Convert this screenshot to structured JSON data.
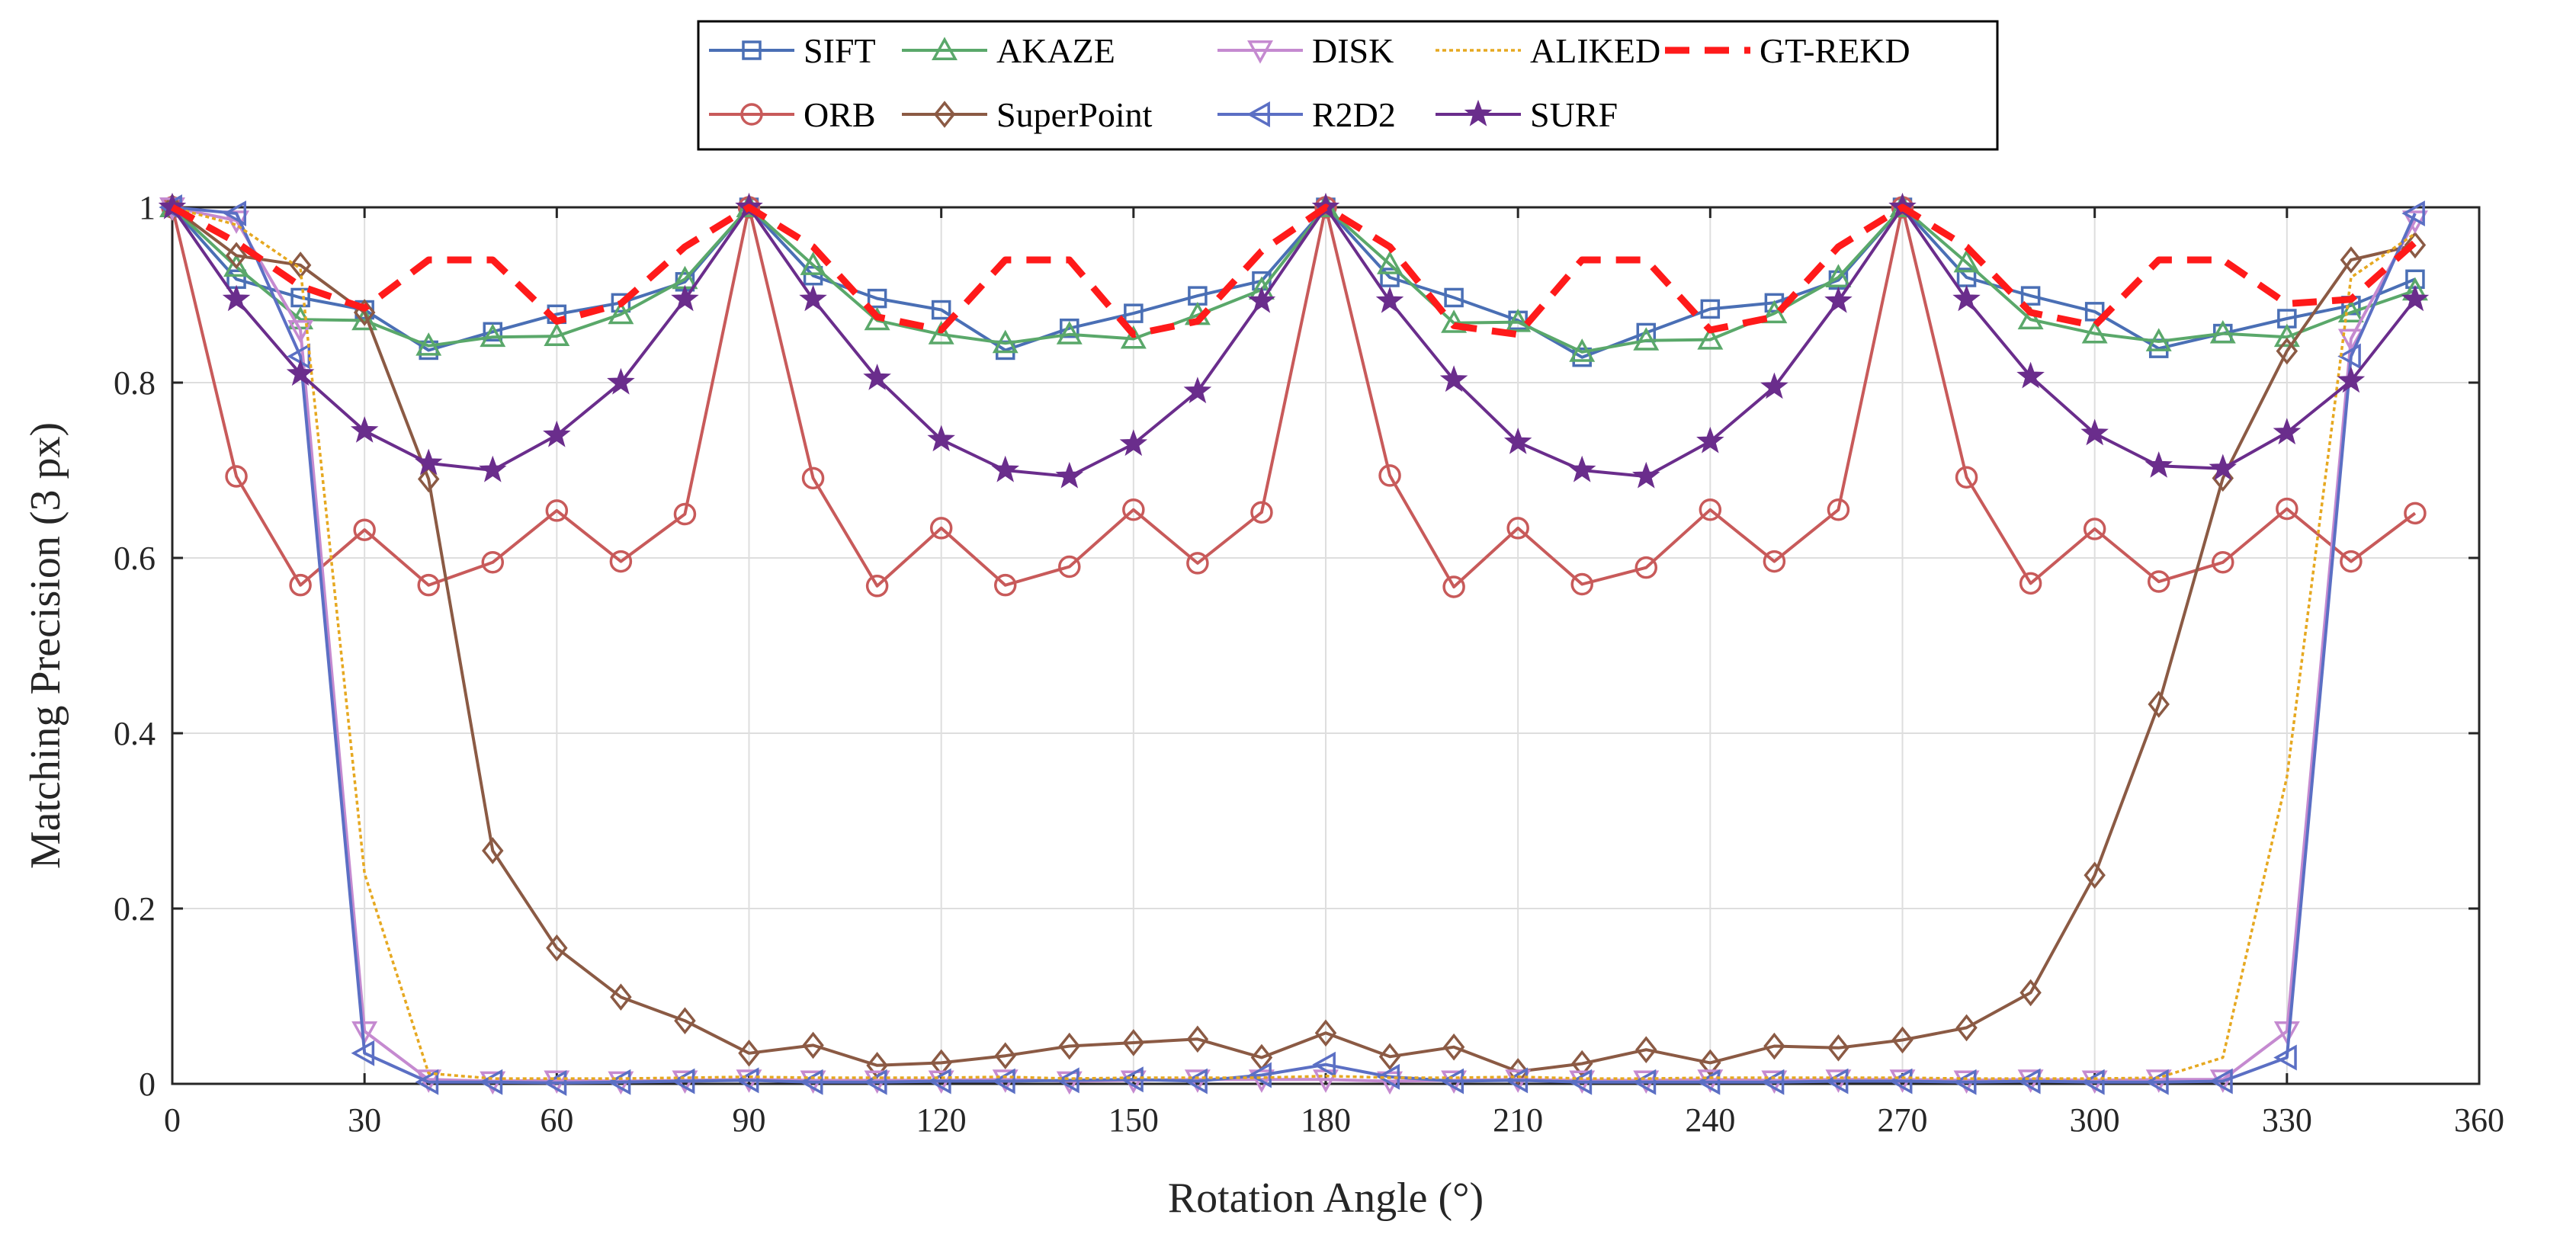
{
  "chart_data": {
    "type": "line",
    "xlabel": "Rotation Angle (°)",
    "ylabel": "Matching Precision (3 px)",
    "xlim": [
      0,
      360
    ],
    "ylim": [
      0,
      1
    ],
    "xticks": [
      0,
      30,
      60,
      90,
      120,
      150,
      180,
      210,
      240,
      270,
      300,
      330,
      360
    ],
    "yticks": [
      0,
      0.2,
      0.4,
      0.6,
      0.8,
      1
    ],
    "ytick_labels": [
      "0",
      "0.2",
      "0.4",
      "0.6",
      "0.8",
      "1"
    ],
    "grid": true,
    "legend_position": "top-center",
    "x": [
      0,
      10,
      20,
      30,
      40,
      50,
      60,
      70,
      80,
      90,
      100,
      110,
      120,
      130,
      140,
      150,
      160,
      170,
      180,
      190,
      200,
      210,
      220,
      230,
      240,
      250,
      260,
      270,
      280,
      290,
      300,
      310,
      320,
      330,
      340,
      350
    ],
    "series": [
      {
        "name": "SIFT",
        "color": "#4a6fb5",
        "marker": "square",
        "line": "solid",
        "values": [
          1.0,
          0.918,
          0.897,
          0.883,
          0.837,
          0.858,
          0.878,
          0.891,
          0.915,
          1.0,
          0.922,
          0.896,
          0.883,
          0.837,
          0.862,
          0.879,
          0.899,
          0.916,
          1.0,
          0.92,
          0.897,
          0.871,
          0.829,
          0.857,
          0.884,
          0.891,
          0.917,
          1.0,
          0.92,
          0.899,
          0.881,
          0.839,
          0.856,
          0.873,
          0.888,
          0.918
        ]
      },
      {
        "name": "ORB",
        "color": "#c85a5a",
        "marker": "circle",
        "line": "solid",
        "values": [
          1.0,
          0.693,
          0.569,
          0.632,
          0.569,
          0.595,
          0.654,
          0.596,
          0.65,
          1.0,
          0.691,
          0.568,
          0.634,
          0.569,
          0.59,
          0.655,
          0.594,
          0.652,
          1.0,
          0.694,
          0.567,
          0.634,
          0.57,
          0.589,
          0.655,
          0.596,
          0.655,
          1.0,
          0.692,
          0.571,
          0.633,
          0.573,
          0.595,
          0.656,
          0.596,
          0.651
        ]
      },
      {
        "name": "AKAZE",
        "color": "#5aa86a",
        "marker": "triangle-up",
        "line": "solid",
        "values": [
          1.0,
          0.932,
          0.872,
          0.871,
          0.842,
          0.852,
          0.853,
          0.878,
          0.918,
          1.0,
          0.934,
          0.871,
          0.855,
          0.845,
          0.855,
          0.85,
          0.877,
          0.906,
          1.0,
          0.935,
          0.868,
          0.869,
          0.835,
          0.848,
          0.849,
          0.879,
          0.92,
          1.0,
          0.937,
          0.872,
          0.856,
          0.847,
          0.856,
          0.852,
          0.88,
          0.905
        ]
      },
      {
        "name": "SuperPoint",
        "color": "#8b5a44",
        "marker": "diamond",
        "line": "solid",
        "values": [
          1.0,
          0.945,
          0.934,
          0.88,
          0.69,
          0.266,
          0.155,
          0.099,
          0.072,
          0.035,
          0.044,
          0.021,
          0.024,
          0.032,
          0.043,
          0.047,
          0.051,
          0.03,
          0.058,
          0.031,
          0.042,
          0.014,
          0.023,
          0.039,
          0.024,
          0.043,
          0.041,
          0.05,
          0.064,
          0.104,
          0.238,
          0.433,
          0.691,
          0.836,
          0.94,
          0.957
        ]
      },
      {
        "name": "DISK",
        "color": "#c58ad0",
        "marker": "triangle-down",
        "line": "solid",
        "values": [
          1.0,
          0.985,
          0.86,
          0.06,
          0.005,
          0.003,
          0.004,
          0.003,
          0.004,
          0.005,
          0.004,
          0.004,
          0.004,
          0.005,
          0.003,
          0.004,
          0.005,
          0.005,
          0.005,
          0.003,
          0.004,
          0.005,
          0.004,
          0.004,
          0.005,
          0.004,
          0.005,
          0.005,
          0.004,
          0.005,
          0.004,
          0.005,
          0.005,
          0.06,
          0.85,
          0.985
        ]
      },
      {
        "name": "R2D2",
        "color": "#5b6fc4",
        "marker": "triangle-left",
        "line": "solid",
        "values": [
          1.0,
          0.993,
          0.83,
          0.035,
          0.002,
          0.002,
          0.001,
          0.002,
          0.003,
          0.004,
          0.002,
          0.002,
          0.003,
          0.003,
          0.004,
          0.005,
          0.003,
          0.01,
          0.022,
          0.008,
          0.003,
          0.004,
          0.002,
          0.002,
          0.002,
          0.002,
          0.003,
          0.003,
          0.002,
          0.003,
          0.002,
          0.002,
          0.003,
          0.03,
          0.83,
          0.993
        ]
      },
      {
        "name": "ALIKED",
        "color": "#e6a820",
        "marker": "none",
        "line": "dotted",
        "values": [
          1.0,
          0.98,
          0.93,
          0.24,
          0.012,
          0.006,
          0.006,
          0.006,
          0.007,
          0.008,
          0.007,
          0.007,
          0.007,
          0.008,
          0.006,
          0.007,
          0.007,
          0.007,
          0.009,
          0.007,
          0.007,
          0.008,
          0.006,
          0.006,
          0.007,
          0.007,
          0.007,
          0.007,
          0.006,
          0.006,
          0.006,
          0.007,
          0.03,
          0.35,
          0.92,
          0.97
        ]
      },
      {
        "name": "SURF",
        "color": "#6a2d8c",
        "marker": "star",
        "line": "solid",
        "values": [
          1.0,
          0.895,
          0.81,
          0.745,
          0.708,
          0.7,
          0.74,
          0.8,
          0.895,
          1.0,
          0.895,
          0.805,
          0.735,
          0.7,
          0.693,
          0.73,
          0.79,
          0.893,
          1.0,
          0.893,
          0.803,
          0.732,
          0.7,
          0.693,
          0.733,
          0.795,
          0.893,
          1.0,
          0.895,
          0.807,
          0.742,
          0.705,
          0.702,
          0.743,
          0.802,
          0.895
        ]
      },
      {
        "name": "GT-REKD",
        "color": "#ff1a1a",
        "marker": "none",
        "line": "dashed",
        "values": [
          1.0,
          0.96,
          0.91,
          0.885,
          0.94,
          0.94,
          0.87,
          0.89,
          0.955,
          1.0,
          0.955,
          0.875,
          0.86,
          0.94,
          0.94,
          0.855,
          0.87,
          0.95,
          1.0,
          0.955,
          0.865,
          0.855,
          0.94,
          0.94,
          0.86,
          0.875,
          0.955,
          1.0,
          0.955,
          0.88,
          0.865,
          0.94,
          0.94,
          0.89,
          0.895,
          0.96
        ]
      }
    ],
    "legend_rows": [
      [
        "SIFT",
        "AKAZE",
        "DISK",
        "ALIKED",
        "GT-REKD"
      ],
      [
        "ORB",
        "SuperPoint",
        "R2D2",
        "SURF"
      ]
    ]
  }
}
